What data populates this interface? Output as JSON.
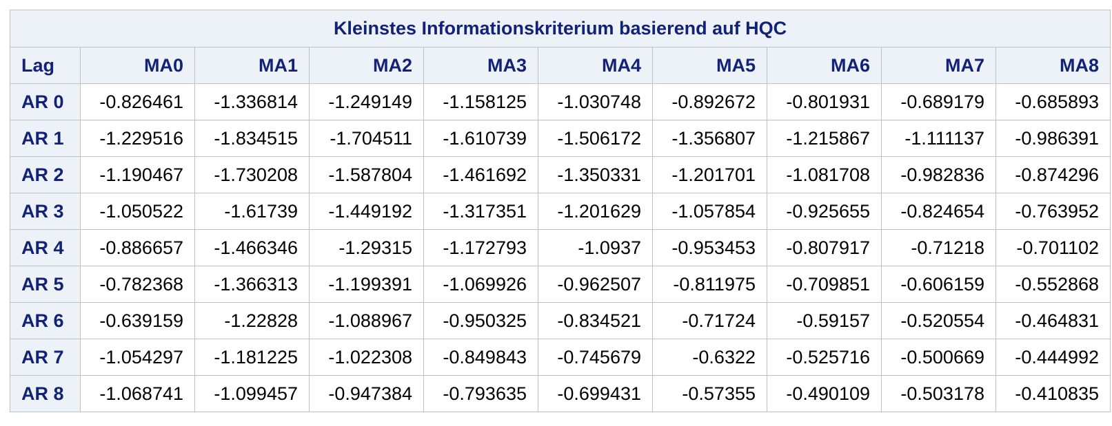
{
  "table": {
    "title": "Kleinstes Informationskriterium basierend auf HQC",
    "corner_label": "Lag",
    "columns": [
      "MA0",
      "MA1",
      "MA2",
      "MA3",
      "MA4",
      "MA5",
      "MA6",
      "MA7",
      "MA8"
    ],
    "rows": [
      {
        "label": "AR 0",
        "values": [
          "-0.826461",
          "-1.336814",
          "-1.249149",
          "-1.158125",
          "-1.030748",
          "-0.892672",
          "-0.801931",
          "-0.689179",
          "-0.685893"
        ]
      },
      {
        "label": "AR 1",
        "values": [
          "-1.229516",
          "-1.834515",
          "-1.704511",
          "-1.610739",
          "-1.506172",
          "-1.356807",
          "-1.215867",
          "-1.111137",
          "-0.986391"
        ]
      },
      {
        "label": "AR 2",
        "values": [
          "-1.190467",
          "-1.730208",
          "-1.587804",
          "-1.461692",
          "-1.350331",
          "-1.201701",
          "-1.081708",
          "-0.982836",
          "-0.874296"
        ]
      },
      {
        "label": "AR 3",
        "values": [
          "-1.050522",
          "-1.61739",
          "-1.449192",
          "-1.317351",
          "-1.201629",
          "-1.057854",
          "-0.925655",
          "-0.824654",
          "-0.763952"
        ]
      },
      {
        "label": "AR 4",
        "values": [
          "-0.886657",
          "-1.466346",
          "-1.29315",
          "-1.172793",
          "-1.0937",
          "-0.953453",
          "-0.807917",
          "-0.71218",
          "-0.701102"
        ]
      },
      {
        "label": "AR 5",
        "values": [
          "-0.782368",
          "-1.366313",
          "-1.199391",
          "-1.069926",
          "-0.962507",
          "-0.811975",
          "-0.709851",
          "-0.606159",
          "-0.552868"
        ]
      },
      {
        "label": "AR 6",
        "values": [
          "-0.639159",
          "-1.22828",
          "-1.088967",
          "-0.950325",
          "-0.834521",
          "-0.71724",
          "-0.59157",
          "-0.520554",
          "-0.464831"
        ]
      },
      {
        "label": "AR 7",
        "values": [
          "-1.054297",
          "-1.181225",
          "-1.022308",
          "-0.849843",
          "-0.745679",
          "-0.6322",
          "-0.525716",
          "-0.500669",
          "-0.444992"
        ]
      },
      {
        "label": "AR 8",
        "values": [
          "-1.068741",
          "-1.099457",
          "-0.947384",
          "-0.793635",
          "-0.699431",
          "-0.57355",
          "-0.490109",
          "-0.503178",
          "-0.410835"
        ]
      }
    ]
  },
  "colors": {
    "header_background": "#edf2f9",
    "header_text": "#112277",
    "grid_line": "#c1c1c1",
    "cell_background": "#ffffff",
    "cell_text": "#000000"
  }
}
